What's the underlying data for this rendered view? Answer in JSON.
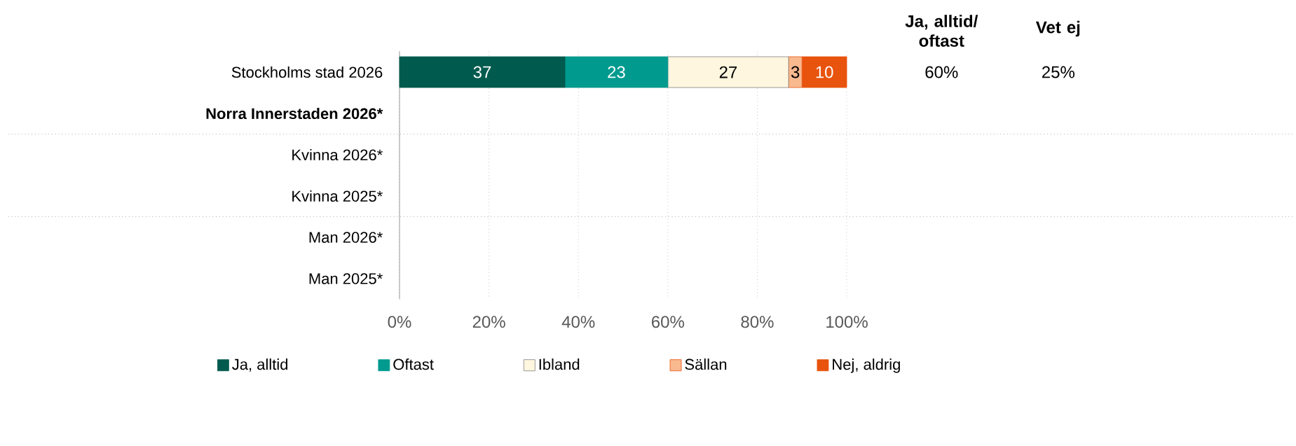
{
  "chart_data": {
    "type": "bar",
    "orientation": "horizontal",
    "stacked": true,
    "categories": [
      "Stockholms stad 2026",
      "Norra Innerstaden 2026*",
      "Kvinna 2026*",
      "Kvinna 2025*",
      "Man 2026*",
      "Man 2025*"
    ],
    "series": [
      {
        "name": "Ja, alltid",
        "color": "#005a4e",
        "values": [
          37,
          null,
          null,
          null,
          null,
          null
        ]
      },
      {
        "name": "Oftast",
        "color": "#009a8e",
        "values": [
          23,
          null,
          null,
          null,
          null,
          null
        ]
      },
      {
        "name": "Ibland",
        "color": "#fff6df",
        "values": [
          27,
          null,
          null,
          null,
          null,
          null
        ]
      },
      {
        "name": "Sällan",
        "color": "#f9b98f",
        "values": [
          3,
          null,
          null,
          null,
          null,
          null
        ]
      },
      {
        "name": "Nej, aldrig",
        "color": "#e8530e",
        "values": [
          10,
          null,
          null,
          null,
          null,
          null
        ]
      }
    ],
    "xlim": [
      0,
      100
    ],
    "xticks": [
      {
        "value": 0,
        "label": "0%"
      },
      {
        "value": 20,
        "label": "20%"
      },
      {
        "value": 40,
        "label": "40%"
      },
      {
        "value": 60,
        "label": "60%"
      },
      {
        "value": 80,
        "label": "80%"
      },
      {
        "value": 100,
        "label": "100%"
      }
    ],
    "grid": "x",
    "legend": "bottom",
    "data_labels": true,
    "annotations": [
      "Ja, alltid/ oftast",
      "Vet ej",
      "60%",
      "25%"
    ]
  }
}
